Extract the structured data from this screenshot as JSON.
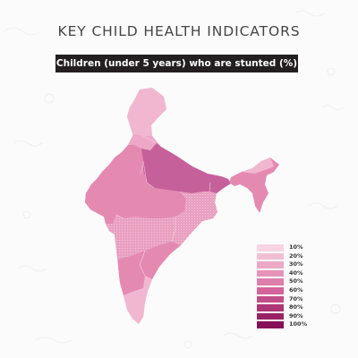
{
  "title": "KEY CHILD HEALTH INDICATORS",
  "subtitle": "Children (under 5 years) who are stunted (%)",
  "colors": {
    "background": "#fbfbfb",
    "subtitle_bg": "#231f20",
    "subtitle_text": "#ffffff",
    "region_light": "#f0b3cd",
    "region_medium": "#e48ab1",
    "region_dark": "#c6609a"
  },
  "legend": [
    {
      "label": "10%",
      "color": "#f6d4e2"
    },
    {
      "label": "20%",
      "color": "#f1bfd4"
    },
    {
      "label": "30%",
      "color": "#eba9c6"
    },
    {
      "label": "40%",
      "color": "#e594b8"
    },
    {
      "label": "50%",
      "color": "#de7eaa"
    },
    {
      "label": "60%",
      "color": "#d3659a"
    },
    {
      "label": "70%",
      "color": "#c24e88"
    },
    {
      "label": "80%",
      "color": "#ae3675"
    },
    {
      "label": "90%",
      "color": "#992266"
    },
    {
      "label": "100%",
      "color": "#851257"
    }
  ]
}
